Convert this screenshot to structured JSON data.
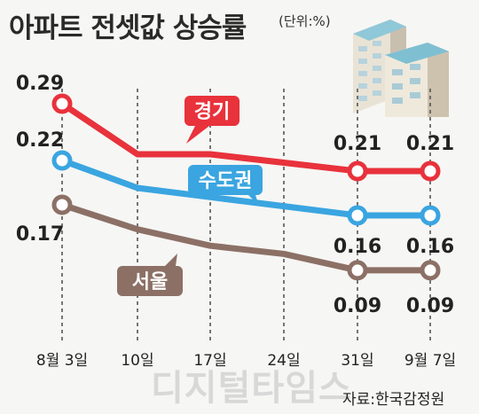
{
  "title": "아파트 전셋값 상승률",
  "unit_note": "(단위:%)",
  "source": "자료:한국감정원",
  "watermark": "디지털타임스",
  "colors": {
    "gyeonggi": "#e8323c",
    "sudogwon": "#3aa5e0",
    "seoul": "#8c7066"
  },
  "chart_data": {
    "type": "line",
    "categories": [
      "8월 3일",
      "10일",
      "17일",
      "24일",
      "31일",
      "9월 7일"
    ],
    "series": [
      {
        "name": "경기",
        "values": [
          0.29,
          0.23,
          0.23,
          0.22,
          0.21,
          0.21
        ]
      },
      {
        "name": "수도권",
        "values": [
          0.22,
          0.19,
          0.18,
          0.17,
          0.16,
          0.16
        ]
      },
      {
        "name": "서울",
        "values": [
          0.17,
          0.14,
          0.12,
          0.11,
          0.09,
          0.09
        ]
      }
    ],
    "labeled": [
      {
        "series": 0,
        "index": 0,
        "text": "0.29"
      },
      {
        "series": 0,
        "index": 4,
        "text": "0.21"
      },
      {
        "series": 0,
        "index": 5,
        "text": "0.21"
      },
      {
        "series": 1,
        "index": 0,
        "text": "0.22"
      },
      {
        "series": 1,
        "index": 4,
        "text": "0.16"
      },
      {
        "series": 1,
        "index": 5,
        "text": "0.16"
      },
      {
        "series": 2,
        "index": 0,
        "text": "0.17"
      },
      {
        "series": 2,
        "index": 4,
        "text": "0.09"
      },
      {
        "series": 2,
        "index": 5,
        "text": "0.09"
      }
    ],
    "ylim": [
      0,
      0.35
    ],
    "grid": "vertical-dashed",
    "legend": "inline"
  }
}
